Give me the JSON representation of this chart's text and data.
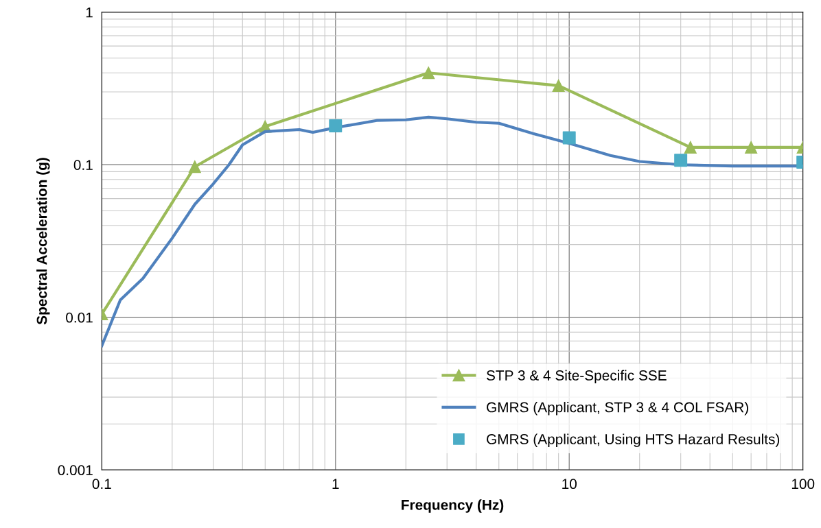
{
  "chart_data": {
    "type": "line",
    "xlabel": "Frequency (Hz)",
    "ylabel": "Spectral Acceleration (g)",
    "log": "xy",
    "xlim": [
      0.1,
      100
    ],
    "ylim": [
      0.001,
      1
    ],
    "xticks": [
      0.1,
      1,
      10,
      100
    ],
    "yticks": [
      0.001,
      0.01,
      0.1,
      1
    ],
    "grid": true,
    "legend": "bottom right",
    "series": [
      {
        "name": "STP 3 & 4 Site-Specific SSE",
        "marker": "triangle",
        "color": "#9bbb59",
        "x": [
          0.1,
          0.25,
          0.5,
          2.5,
          9,
          33,
          60,
          100
        ],
        "values": [
          0.0105,
          0.097,
          0.178,
          0.4,
          0.33,
          0.13,
          0.13,
          0.13
        ]
      },
      {
        "name": "GMRS (Applicant, STP 3 & 4 COL FSAR)",
        "marker": "none",
        "color": "#4f81bd",
        "x": [
          0.1,
          0.12,
          0.15,
          0.2,
          0.25,
          0.3,
          0.35,
          0.4,
          0.5,
          0.7,
          0.8,
          1,
          1.5,
          2,
          2.5,
          3,
          4,
          5,
          7,
          10,
          15,
          20,
          30,
          50,
          100
        ],
        "values": [
          0.0065,
          0.013,
          0.018,
          0.033,
          0.055,
          0.075,
          0.1,
          0.135,
          0.165,
          0.17,
          0.163,
          0.175,
          0.195,
          0.197,
          0.205,
          0.2,
          0.19,
          0.187,
          0.16,
          0.138,
          0.115,
          0.105,
          0.1,
          0.098,
          0.098
        ]
      },
      {
        "name": "GMRS (Applicant, Using HTS Hazard Results)",
        "type": "scatter",
        "marker": "square",
        "color": "#4bacc6",
        "x": [
          1,
          10,
          30,
          100
        ],
        "values": [
          0.18,
          0.15,
          0.107,
          0.104
        ]
      }
    ]
  }
}
